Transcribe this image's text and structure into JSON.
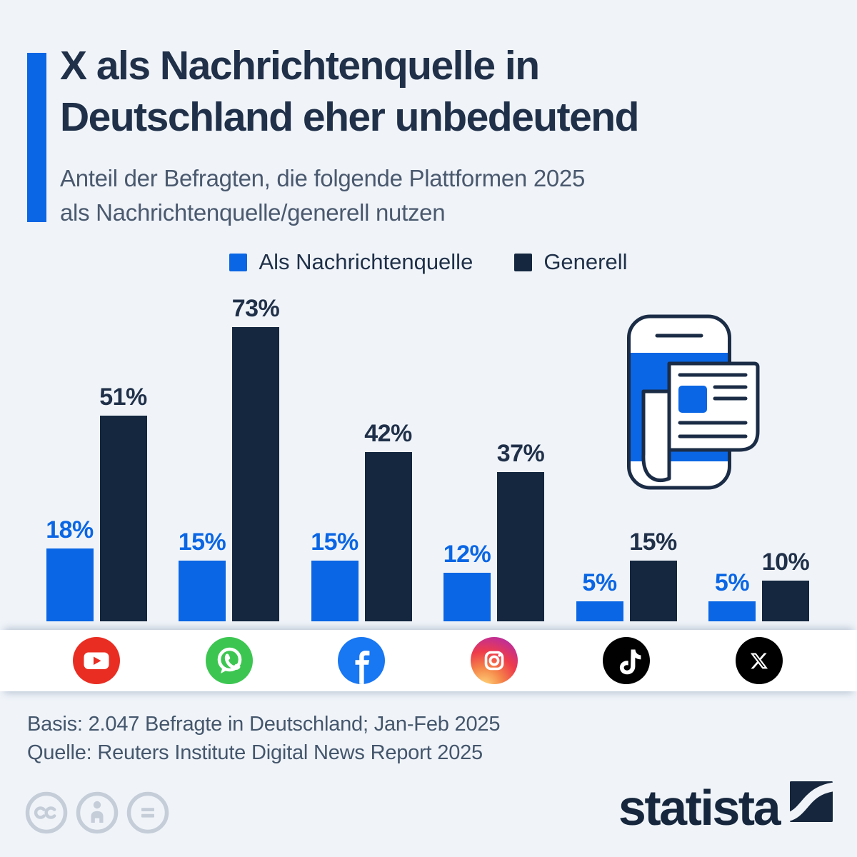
{
  "title": {
    "line1": "X als Nachrichtenquelle in",
    "line2": "Deutschland eher unbedeutend"
  },
  "subtitle": {
    "line1": "Anteil der Befragten, die folgende Plattformen 2025",
    "line2": "als Nachrichtenquelle/generell nutzen"
  },
  "chart_data": {
    "type": "bar",
    "categories": [
      "YouTube",
      "WhatsApp",
      "Facebook",
      "Instagram",
      "TikTok",
      "X"
    ],
    "series": [
      {
        "name": "Als Nachrichtenquelle",
        "color": "#0a66e4",
        "values": [
          18,
          15,
          15,
          12,
          5,
          5
        ]
      },
      {
        "name": "Generell",
        "color": "#14273f",
        "values": [
          51,
          73,
          42,
          37,
          15,
          10
        ]
      }
    ],
    "unit": "%",
    "value_label_format": "{v}%",
    "ylim": [
      0,
      80
    ],
    "grid": false,
    "legend_position": "top",
    "icons": [
      "youtube-icon",
      "whatsapp-icon",
      "facebook-icon",
      "instagram-icon",
      "tiktok-icon",
      "x-icon"
    ]
  },
  "footer": {
    "basis": "Basis: 2.047 Befragte in Deutschland; Jan-Feb 2025",
    "source": "Quelle: Reuters Institute Digital News Report 2025"
  },
  "branding": {
    "wordmark": "statista"
  },
  "license": {
    "icons": [
      "cc-icon",
      "attribution-icon",
      "no-derivatives-icon"
    ]
  },
  "colors": {
    "background": "#f0f4f9",
    "accent_blue": "#0a66e4",
    "bar_navy": "#14273f",
    "title_navy": "#203049",
    "muted_slate": "#4a596e",
    "label_navy": "#203049",
    "license_gray": "#c4cdd8"
  }
}
